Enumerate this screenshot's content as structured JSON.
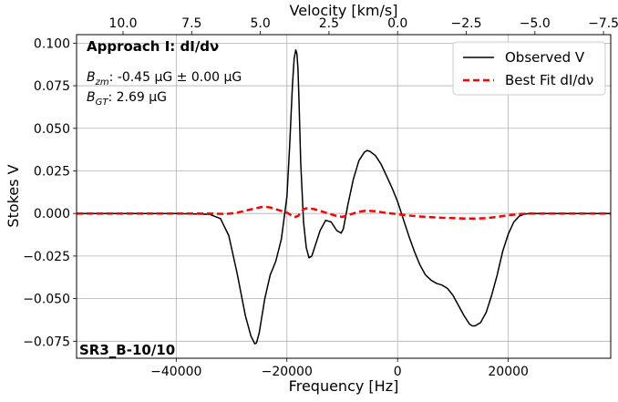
{
  "chart_data": {
    "type": "line",
    "xlabel": "Frequency [Hz]",
    "ylabel": "Stokes V",
    "top_xlabel": "Velocity [km/s]",
    "xlim": [
      -58000,
      38500
    ],
    "ylim": [
      -0.085,
      0.105
    ],
    "x_ticks": [
      -40000,
      -20000,
      0,
      20000
    ],
    "x_tick_labels": [
      "−40000",
      "−20000",
      "0",
      "20000"
    ],
    "y_ticks": [
      -0.075,
      -0.05,
      -0.025,
      0.0,
      0.025,
      0.05,
      0.075,
      0.1
    ],
    "y_tick_labels": [
      "−0.075",
      "−0.050",
      "−0.025",
      "0.000",
      "0.025",
      "0.050",
      "0.075",
      "0.100"
    ],
    "top_ticks_velocity": [
      10.0,
      7.5,
      5.0,
      2.5,
      0.0,
      -2.5,
      -5.0,
      -7.5
    ],
    "top_tick_labels": [
      "10.0",
      "7.5",
      "5.0",
      "2.5",
      "0.0",
      "−2.5",
      "−5.0",
      "−7.5"
    ],
    "hz_per_kms": -4960,
    "grid": true,
    "legend_position": "top-right",
    "series": [
      {
        "name": "Observed V",
        "color": "#000000",
        "style": "solid",
        "x": [
          -58000,
          -40000,
          -34000,
          -32000,
          -30500,
          -29000,
          -27500,
          -26500,
          -25800,
          -25500,
          -25000,
          -24000,
          -23000,
          -22500,
          -22000,
          -21000,
          -20000,
          -19500,
          -19000,
          -18700,
          -18400,
          -18200,
          -18000,
          -17800,
          -17500,
          -17000,
          -16500,
          -16000,
          -15500,
          -15000,
          -14000,
          -13000,
          -12000,
          -11000,
          -10200,
          -9800,
          -9000,
          -8000,
          -7000,
          -6000,
          -5500,
          -5000,
          -4000,
          -3000,
          -2000,
          -1000,
          0,
          1000,
          2000,
          3000,
          4000,
          5000,
          6000,
          7000,
          8000,
          9000,
          10000,
          11000,
          12000,
          13000,
          13500,
          14000,
          15000,
          16000,
          17000,
          18000,
          19000,
          20000,
          21000,
          22000,
          23000,
          24000,
          25000,
          27000,
          38500
        ],
        "y": [
          0.0,
          0.0,
          -0.0005,
          -0.003,
          -0.013,
          -0.035,
          -0.06,
          -0.072,
          -0.0765,
          -0.076,
          -0.07,
          -0.05,
          -0.036,
          -0.032,
          -0.028,
          -0.015,
          0.01,
          0.04,
          0.075,
          0.091,
          0.096,
          0.094,
          0.085,
          0.065,
          0.03,
          -0.005,
          -0.02,
          -0.026,
          -0.025,
          -0.02,
          -0.01,
          -0.004,
          -0.005,
          -0.01,
          -0.0115,
          -0.009,
          0.005,
          0.02,
          0.031,
          0.036,
          0.037,
          0.0365,
          0.034,
          0.029,
          0.022,
          0.015,
          0.007,
          -0.003,
          -0.013,
          -0.022,
          -0.03,
          -0.036,
          -0.039,
          -0.041,
          -0.042,
          -0.044,
          -0.048,
          -0.054,
          -0.06,
          -0.065,
          -0.066,
          -0.066,
          -0.064,
          -0.058,
          -0.048,
          -0.036,
          -0.022,
          -0.012,
          -0.005,
          -0.0015,
          -0.0003,
          0.0,
          0.0,
          0.0,
          0.0
        ]
      },
      {
        "name": "Best Fit dI/dν",
        "color": "#ff0000",
        "style": "dashed",
        "x": [
          -58000,
          -35000,
          -31000,
          -29000,
          -27000,
          -25000,
          -24000,
          -23000,
          -22000,
          -21000,
          -20500,
          -20000,
          -19500,
          -19000,
          -18500,
          -18000,
          -17500,
          -17000,
          -16500,
          -16000,
          -15000,
          -14000,
          -13000,
          -12000,
          -11000,
          -10000,
          -9000,
          -8000,
          -7000,
          -6000,
          -5000,
          -4000,
          -3000,
          -2000,
          -1000,
          0,
          2000,
          4000,
          6000,
          8000,
          10000,
          12000,
          14000,
          16000,
          18000,
          20000,
          22000,
          24000,
          38500
        ],
        "y": [
          0.0,
          0.0,
          -0.0003,
          0.0005,
          0.002,
          0.0035,
          0.004,
          0.0035,
          0.0025,
          0.0015,
          0.001,
          0.0005,
          -0.0005,
          -0.0015,
          -0.002,
          -0.0015,
          0.0005,
          0.0025,
          0.003,
          0.003,
          0.0025,
          0.0015,
          0.0005,
          -0.0005,
          -0.0015,
          -0.002,
          -0.001,
          0.0,
          0.001,
          0.0015,
          0.0015,
          0.0013,
          0.0008,
          0.0003,
          0.0,
          -0.0005,
          -0.0012,
          -0.0018,
          -0.0022,
          -0.0025,
          -0.0027,
          -0.003,
          -0.003,
          -0.0028,
          -0.002,
          -0.001,
          -0.0004,
          0.0,
          0.0
        ]
      }
    ]
  },
  "annotations": {
    "title": "Approach I: dI/dν",
    "bzm_label": "B",
    "bzm_sub": "zm",
    "bzm_value": ": -0.45 μG ± 0.00 μG",
    "bgt_label": "B",
    "bgt_sub": "GT",
    "bgt_value": ": 2.69 μG",
    "source": "SR3_B-10/10"
  }
}
